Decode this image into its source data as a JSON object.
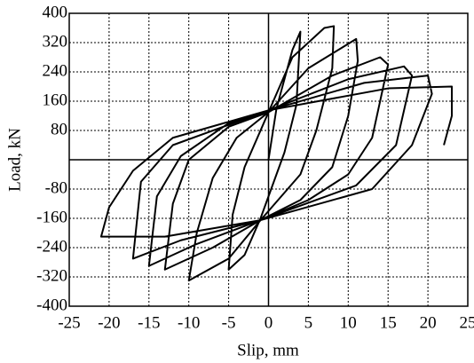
{
  "chart_data": {
    "type": "line",
    "x_label": "Slip, mm",
    "y_label": "Load, kN",
    "xlim": [
      -25,
      25
    ],
    "ylim": [
      -400,
      400
    ],
    "xticks": [
      -25,
      -20,
      -15,
      -10,
      -5,
      0,
      5,
      10,
      15,
      20,
      25
    ],
    "yticks": [
      -400,
      -320,
      -240,
      -160,
      -80,
      80,
      160,
      240,
      320,
      400
    ],
    "grid": true,
    "series": [
      {
        "color": "#000000",
        "x": [
          0,
          1,
          3,
          4,
          3.5,
          2,
          0,
          -1,
          -3,
          -5,
          -4.5,
          -3,
          0,
          3,
          7,
          8.2,
          8,
          6,
          4,
          0,
          -1,
          -5,
          -10,
          -9,
          -7,
          -4,
          0,
          5,
          11,
          11.2,
          10,
          8,
          4,
          -1,
          -7,
          -13,
          -12,
          -10,
          -5,
          0,
          8,
          14,
          15,
          13,
          10,
          5,
          -1,
          -9,
          -15,
          -14,
          -11,
          -5,
          0,
          10,
          17,
          18,
          16,
          11,
          -1,
          -11,
          -17,
          -16,
          -12,
          0,
          12,
          20,
          20.5,
          18,
          13,
          -1,
          -13,
          -21,
          -20,
          -17,
          -12,
          0,
          15,
          23,
          23,
          22
        ],
        "values": [
          0,
          140,
          300,
          350,
          150,
          20,
          -100,
          -160,
          -260,
          -300,
          -150,
          -20,
          130,
          280,
          360,
          365,
          250,
          80,
          -40,
          -140,
          -165,
          -270,
          -330,
          -200,
          -50,
          60,
          130,
          250,
          330,
          270,
          120,
          -20,
          -110,
          -165,
          -240,
          -300,
          -120,
          0,
          90,
          130,
          230,
          280,
          260,
          60,
          -40,
          -110,
          -165,
          -230,
          -290,
          -100,
          10,
          100,
          135,
          220,
          255,
          230,
          40,
          -70,
          -165,
          -220,
          -270,
          -60,
          40,
          135,
          210,
          230,
          180,
          40,
          -80,
          -165,
          -210,
          -210,
          -130,
          -30,
          60,
          135,
          195,
          200,
          120,
          40
        ]
      }
    ]
  }
}
